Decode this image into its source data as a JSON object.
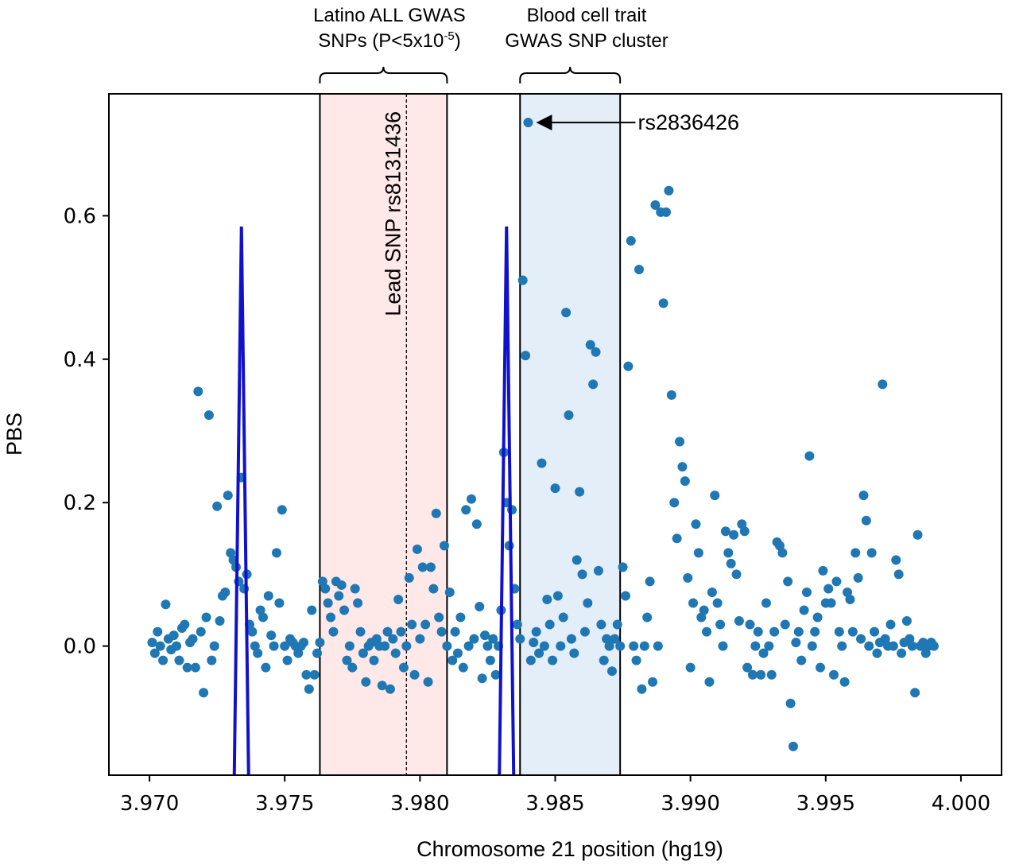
{
  "chart_data": {
    "type": "scatter",
    "xlabel": "Chromosome 21 position (hg19)",
    "ylabel": "PBS",
    "xlim": [
      3.9685,
      4.0015
    ],
    "ylim": [
      -0.18,
      0.77
    ],
    "x_ticks": [
      "3.970",
      "3.975",
      "3.980",
      "3.985",
      "3.990",
      "3.995",
      "4.000"
    ],
    "x_tick_values": [
      3.97,
      3.975,
      3.98,
      3.985,
      3.99,
      3.995,
      4.0
    ],
    "y_ticks": [
      "0.0",
      "0.2",
      "0.4",
      "0.6"
    ],
    "y_tick_values": [
      0.0,
      0.2,
      0.4,
      0.6
    ],
    "grid": false,
    "point_color": "#1f77b4",
    "regions": [
      {
        "name": "latino-all-gwas-region",
        "title_lines": [
          "Latino ALL GWAS",
          "SNPs (P<5x10",
          "-5",
          ")"
        ],
        "x_start": 3.9763,
        "x_end": 3.981,
        "fill": "#ffe8e8"
      },
      {
        "name": "blood-cell-region",
        "title_lines": [
          "Blood cell trait",
          "GWAS SNP cluster"
        ],
        "x_start": 3.9837,
        "x_end": 3.9874,
        "fill": "#e3eef9"
      }
    ],
    "lead_snp": {
      "label": "Lead SNP rs8131436",
      "x": 3.9795
    },
    "highlight": {
      "label": "rs2836426",
      "x": 3.984,
      "y": 0.73
    },
    "peaks": [
      {
        "x_center": 3.9734,
        "y_top": 0.585,
        "color": "#1111cc"
      },
      {
        "x_center": 3.9832,
        "y_top": 0.585,
        "color": "#1111cc"
      }
    ],
    "points": [
      [
        3.9701,
        0.005
      ],
      [
        3.9702,
        -0.01
      ],
      [
        3.9703,
        0.02
      ],
      [
        3.9704,
        0.0
      ],
      [
        3.9705,
        -0.02
      ],
      [
        3.9706,
        0.058
      ],
      [
        3.9707,
        0.01
      ],
      [
        3.9708,
        -0.005
      ],
      [
        3.9709,
        0.015
      ],
      [
        3.971,
        0.0
      ],
      [
        3.9711,
        -0.02
      ],
      [
        3.9712,
        0.025
      ],
      [
        3.9713,
        0.03
      ],
      [
        3.9714,
        -0.03
      ],
      [
        3.9715,
        0.005
      ],
      [
        3.9716,
        0.01
      ],
      [
        3.9717,
        -0.03
      ],
      [
        3.9718,
        0.355
      ],
      [
        3.9719,
        0.02
      ],
      [
        3.972,
        -0.065
      ],
      [
        3.9721,
        0.04
      ],
      [
        3.9722,
        0.322
      ],
      [
        3.9723,
        -0.02
      ],
      [
        3.9724,
        0.0
      ],
      [
        3.9725,
        0.195
      ],
      [
        3.9726,
        0.035
      ],
      [
        3.9727,
        0.07
      ],
      [
        3.9728,
        0.075
      ],
      [
        3.9729,
        0.21
      ],
      [
        3.973,
        0.13
      ],
      [
        3.9731,
        0.12
      ],
      [
        3.9732,
        0.11
      ],
      [
        3.9733,
        0.09
      ],
      [
        3.9734,
        0.235
      ],
      [
        3.9735,
        0.08
      ],
      [
        3.9736,
        0.1
      ],
      [
        3.9737,
        0.03
      ],
      [
        3.9738,
        0.02
      ],
      [
        3.9739,
        0.0
      ],
      [
        3.974,
        -0.01
      ],
      [
        3.9741,
        0.05
      ],
      [
        3.9742,
        0.04
      ],
      [
        3.9743,
        -0.03
      ],
      [
        3.9744,
        0.07
      ],
      [
        3.9745,
        0.015
      ],
      [
        3.9746,
        0.0
      ],
      [
        3.9747,
        0.13
      ],
      [
        3.9748,
        0.06
      ],
      [
        3.9749,
        0.19
      ],
      [
        3.975,
        0.0
      ],
      [
        3.9751,
        -0.02
      ],
      [
        3.9752,
        0.01
      ],
      [
        3.9753,
        0.005
      ],
      [
        3.9754,
        0.0
      ],
      [
        3.9755,
        -0.01
      ],
      [
        3.9756,
        0.0
      ],
      [
        3.9757,
        0.005
      ],
      [
        3.9758,
        -0.04
      ],
      [
        3.9759,
        -0.06
      ],
      [
        3.976,
        0.05
      ],
      [
        3.9761,
        -0.04
      ],
      [
        3.9762,
        -0.01
      ],
      [
        3.9763,
        0.005
      ],
      [
        3.9764,
        0.09
      ],
      [
        3.9765,
        0.08
      ],
      [
        3.9766,
        0.06
      ],
      [
        3.9767,
        0.04
      ],
      [
        3.9768,
        0.02
      ],
      [
        3.9769,
        0.09
      ],
      [
        3.977,
        0.07
      ],
      [
        3.9771,
        0.085
      ],
      [
        3.9772,
        0.05
      ],
      [
        3.9773,
        -0.02
      ],
      [
        3.9774,
        0.0
      ],
      [
        3.9775,
        -0.03
      ],
      [
        3.9776,
        0.08
      ],
      [
        3.9777,
        0.06
      ],
      [
        3.9778,
        0.02
      ],
      [
        3.9779,
        -0.01
      ],
      [
        3.978,
        -0.05
      ],
      [
        3.9781,
        0.0
      ],
      [
        3.9782,
        0.005
      ],
      [
        3.9783,
        -0.02
      ],
      [
        3.9784,
        0.01
      ],
      [
        3.9785,
        0.0
      ],
      [
        3.9786,
        -0.055
      ],
      [
        3.9787,
        0.0
      ],
      [
        3.9788,
        0.02
      ],
      [
        3.9789,
        -0.06
      ],
      [
        3.979,
        0.01
      ],
      [
        3.9791,
        -0.01
      ],
      [
        3.9792,
        0.065
      ],
      [
        3.9793,
        0.02
      ],
      [
        3.9794,
        -0.03
      ],
      [
        3.9795,
        0.0
      ],
      [
        3.9796,
        0.095
      ],
      [
        3.9797,
        0.03
      ],
      [
        3.9798,
        -0.04
      ],
      [
        3.9799,
        0.135
      ],
      [
        3.98,
        0.01
      ],
      [
        3.9801,
        0.11
      ],
      [
        3.9802,
        0.03
      ],
      [
        3.9803,
        -0.05
      ],
      [
        3.9804,
        0.11
      ],
      [
        3.9805,
        0.08
      ],
      [
        3.9806,
        0.185
      ],
      [
        3.9807,
        0.04
      ],
      [
        3.9808,
        0.02
      ],
      [
        3.9809,
        0.14
      ],
      [
        3.981,
        0.0
      ],
      [
        3.9811,
        0.075
      ],
      [
        3.9812,
        -0.02
      ],
      [
        3.9813,
        0.02
      ],
      [
        3.9814,
        -0.01
      ],
      [
        3.9815,
        0.04
      ],
      [
        3.9816,
        -0.03
      ],
      [
        3.9817,
        0.19
      ],
      [
        3.9818,
        0.0
      ],
      [
        3.9819,
        0.205
      ],
      [
        3.982,
        0.01
      ],
      [
        3.9821,
        0.17
      ],
      [
        3.9822,
        0.055
      ],
      [
        3.9823,
        -0.045
      ],
      [
        3.9824,
        0.015
      ],
      [
        3.9825,
        0.0
      ],
      [
        3.9826,
        -0.02
      ],
      [
        3.9827,
        0.01
      ],
      [
        3.9828,
        -0.04
      ],
      [
        3.9829,
        0.0
      ],
      [
        3.983,
        0.05
      ],
      [
        3.9831,
        0.27
      ],
      [
        3.9832,
        0.2
      ],
      [
        3.9833,
        0.14
      ],
      [
        3.9834,
        0.19
      ],
      [
        3.9835,
        0.08
      ],
      [
        3.9836,
        0.03
      ],
      [
        3.9837,
        0.01
      ],
      [
        3.9838,
        0.51
      ],
      [
        3.9839,
        0.405
      ],
      [
        3.984,
        0.73
      ],
      [
        3.9841,
        -0.02
      ],
      [
        3.9842,
        0.005
      ],
      [
        3.9843,
        0.02
      ],
      [
        3.9844,
        -0.01
      ],
      [
        3.9845,
        0.255
      ],
      [
        3.9846,
        0.0
      ],
      [
        3.9847,
        0.065
      ],
      [
        3.9848,
        0.03
      ],
      [
        3.9849,
        -0.02
      ],
      [
        3.985,
        0.22
      ],
      [
        3.9851,
        0.07
      ],
      [
        3.9852,
        0.0
      ],
      [
        3.9853,
        0.04
      ],
      [
        3.9854,
        0.465
      ],
      [
        3.9855,
        0.322
      ],
      [
        3.9856,
        0.01
      ],
      [
        3.9857,
        -0.01
      ],
      [
        3.9858,
        0.12
      ],
      [
        3.9859,
        0.215
      ],
      [
        3.986,
        0.1
      ],
      [
        3.9861,
        0.02
      ],
      [
        3.9862,
        0.06
      ],
      [
        3.9863,
        0.42
      ],
      [
        3.9864,
        0.365
      ],
      [
        3.9865,
        0.41
      ],
      [
        3.9866,
        0.105
      ],
      [
        3.9867,
        0.03
      ],
      [
        3.9868,
        -0.02
      ],
      [
        3.9869,
        0.01
      ],
      [
        3.987,
        0.0
      ],
      [
        3.9871,
        -0.035
      ],
      [
        3.9872,
        0.01
      ],
      [
        3.9873,
        0.03
      ],
      [
        3.9874,
        0.0
      ],
      [
        3.9875,
        0.11
      ],
      [
        3.9876,
        0.07
      ],
      [
        3.9877,
        0.39
      ],
      [
        3.9878,
        0.565
      ],
      [
        3.9879,
        0.0
      ],
      [
        3.988,
        -0.02
      ],
      [
        3.9881,
        0.525
      ],
      [
        3.9882,
        -0.06
      ],
      [
        3.9883,
        0.0
      ],
      [
        3.9884,
        0.04
      ],
      [
        3.9885,
        0.09
      ],
      [
        3.9886,
        -0.05
      ],
      [
        3.9887,
        0.615
      ],
      [
        3.9888,
        0.0
      ],
      [
        3.9889,
        0.605
      ],
      [
        3.989,
        0.478
      ],
      [
        3.9891,
        0.605
      ],
      [
        3.9892,
        0.635
      ],
      [
        3.9893,
        0.35
      ],
      [
        3.9894,
        0.2
      ],
      [
        3.9895,
        0.15
      ],
      [
        3.9896,
        0.285
      ],
      [
        3.9897,
        0.25
      ],
      [
        3.9898,
        0.23
      ],
      [
        3.9899,
        0.095
      ],
      [
        3.99,
        -0.03
      ],
      [
        3.9901,
        0.06
      ],
      [
        3.9902,
        0.17
      ],
      [
        3.9903,
        0.13
      ],
      [
        3.9904,
        0.04
      ],
      [
        3.9905,
        0.05
      ],
      [
        3.9906,
        0.02
      ],
      [
        3.9907,
        -0.05
      ],
      [
        3.9908,
        0.075
      ],
      [
        3.9909,
        0.21
      ],
      [
        3.991,
        0.06
      ],
      [
        3.9911,
        0.03
      ],
      [
        3.9912,
        0.0
      ],
      [
        3.9913,
        0.16
      ],
      [
        3.9914,
        0.13
      ],
      [
        3.9915,
        0.115
      ],
      [
        3.9916,
        0.155
      ],
      [
        3.9917,
        0.1
      ],
      [
        3.9918,
        0.035
      ],
      [
        3.9919,
        0.17
      ],
      [
        3.992,
        0.16
      ],
      [
        3.9921,
        -0.03
      ],
      [
        3.9922,
        0.03
      ],
      [
        3.9923,
        -0.04
      ],
      [
        3.9924,
        0.0
      ],
      [
        3.9925,
        0.02
      ],
      [
        3.9926,
        -0.04
      ],
      [
        3.9927,
        -0.01
      ],
      [
        3.9928,
        0.06
      ],
      [
        3.9929,
        0.0
      ],
      [
        3.993,
        -0.04
      ],
      [
        3.9931,
        0.02
      ],
      [
        3.9932,
        0.145
      ],
      [
        3.9933,
        0.14
      ],
      [
        3.9934,
        0.13
      ],
      [
        3.9935,
        0.03
      ],
      [
        3.9936,
        0.09
      ],
      [
        3.9937,
        -0.08
      ],
      [
        3.9938,
        -0.14
      ],
      [
        3.9939,
        0.005
      ],
      [
        3.994,
        0.02
      ],
      [
        3.9941,
        -0.02
      ],
      [
        3.9942,
        0.05
      ],
      [
        3.9943,
        0.075
      ],
      [
        3.9944,
        0.265
      ],
      [
        3.9945,
        0.0
      ],
      [
        3.9946,
        0.02
      ],
      [
        3.9947,
        0.04
      ],
      [
        3.9948,
        -0.03
      ],
      [
        3.9949,
        0.105
      ],
      [
        3.995,
        0.06
      ],
      [
        3.9951,
        0.08
      ],
      [
        3.9952,
        0.06
      ],
      [
        3.9953,
        -0.04
      ],
      [
        3.9954,
        0.09
      ],
      [
        3.9955,
        0.02
      ],
      [
        3.9956,
        0.0
      ],
      [
        3.9957,
        -0.05
      ],
      [
        3.9958,
        0.075
      ],
      [
        3.9959,
        0.065
      ],
      [
        3.996,
        0.02
      ],
      [
        3.9961,
        0.13
      ],
      [
        3.9962,
        0.095
      ],
      [
        3.9963,
        0.01
      ],
      [
        3.9964,
        0.21
      ],
      [
        3.9965,
        0.175
      ],
      [
        3.9966,
        0.0
      ],
      [
        3.9967,
        0.13
      ],
      [
        3.9968,
        0.02
      ],
      [
        3.9969,
        -0.01
      ],
      [
        3.997,
        0.005
      ],
      [
        3.9971,
        0.365
      ],
      [
        3.9972,
        0.01
      ],
      [
        3.9973,
        0.0
      ],
      [
        3.9974,
        0.03
      ],
      [
        3.9975,
        0.0
      ],
      [
        3.9976,
        0.12
      ],
      [
        3.9977,
        0.1
      ],
      [
        3.9978,
        -0.01
      ],
      [
        3.9979,
        0.005
      ],
      [
        3.998,
        0.035
      ],
      [
        3.9981,
        0.01
      ],
      [
        3.9982,
        0.0
      ],
      [
        3.9983,
        -0.065
      ],
      [
        3.9984,
        0.155
      ],
      [
        3.9985,
        0.0
      ],
      [
        3.9986,
        0.005
      ],
      [
        3.9987,
        -0.01
      ],
      [
        3.9988,
        0.0
      ],
      [
        3.9989,
        0.005
      ],
      [
        3.999,
        0.0
      ]
    ]
  }
}
